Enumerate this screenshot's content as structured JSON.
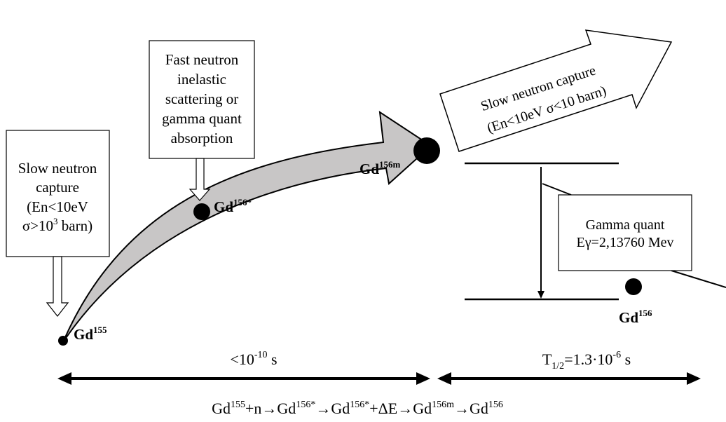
{
  "boxes": {
    "slow_capture_left": {
      "lines": [
        "Slow neutron",
        "capture",
        "(En<10eV",
        "σ>10",
        "3",
        " barn)"
      ]
    },
    "fast_neutron": {
      "lines": [
        "Fast neutron",
        "inelastic",
        "scattering or",
        "gamma quant",
        "absorption"
      ]
    },
    "gamma_quant": {
      "line1": "Gamma quant",
      "line2": "Eγ=2,13760 Mev"
    },
    "slow_capture_right": {
      "line1": "Slow neutron capture",
      "line2": "(En<10eV   σ<10 barn)"
    }
  },
  "nuclei": {
    "gd155": {
      "base": "Gd",
      "sup": "155"
    },
    "gd156star": {
      "base": "Gd",
      "sup": "156*"
    },
    "gd156m": {
      "base": "Gd",
      "sup": "156m"
    },
    "gd156": {
      "base": "Gd",
      "sup": "156"
    }
  },
  "timescales": {
    "left": {
      "base": "<10",
      "sup": "-10",
      "tail": " s"
    },
    "right": {
      "base": "T",
      "sub": "1/2",
      "mid": "=1.3·10",
      "sup": "-6",
      "tail": " s"
    }
  },
  "equation": {
    "parts": [
      {
        "t": "Gd"
      },
      {
        "sup": "155"
      },
      {
        "t": "+n→Gd"
      },
      {
        "sup": "156*"
      },
      {
        "t": "→Gd"
      },
      {
        "sup": "156*"
      },
      {
        "t": "+ΔE→Gd"
      },
      {
        "sup": "156m"
      },
      {
        "t": "→Gd"
      },
      {
        "sup": "156"
      }
    ]
  },
  "colors": {
    "big_arrow_fill": "#c8c6c6",
    "ink": "#000000"
  }
}
